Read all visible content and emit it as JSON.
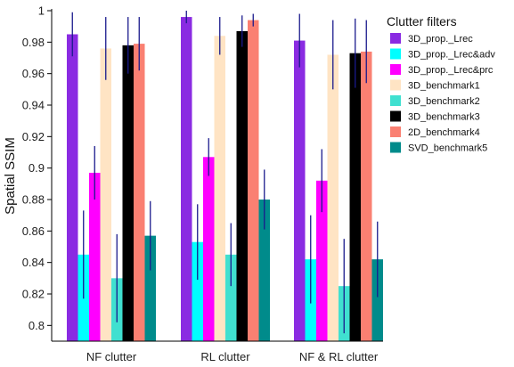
{
  "chart_data": {
    "type": "bar",
    "ylabel": "Spatial SSIM",
    "xlabel": "",
    "ylim": [
      0.79,
      1.0
    ],
    "yticks": [
      0.8,
      0.82,
      0.84,
      0.86,
      0.88,
      0.9,
      0.92,
      0.94,
      0.96,
      0.98,
      1
    ],
    "ytick_labels": [
      "0.8",
      "0.82",
      "0.84",
      "0.86",
      "0.88",
      "0.9",
      "0.92",
      "0.94",
      "0.96",
      "0.98",
      "1"
    ],
    "categories": [
      "NF clutter",
      "RL clutter",
      "NF & RL clutter"
    ],
    "legend": {
      "title": "Clutter filters",
      "position": "right"
    },
    "error_bar_color": "#1a1a8c",
    "series": [
      {
        "name": "3D_prop._Lrec",
        "color": "#8a2be2",
        "values": [
          0.985,
          0.996,
          0.981
        ],
        "errors": [
          0.014,
          0.004,
          0.017
        ]
      },
      {
        "name": "3D_prop._Lrec&adv",
        "color": "#00ffff",
        "values": [
          0.845,
          0.853,
          0.842
        ],
        "errors": [
          0.028,
          0.024,
          0.028
        ]
      },
      {
        "name": "3D_prop._Lrec&prc",
        "color": "#ff00ff",
        "values": [
          0.897,
          0.907,
          0.892
        ],
        "errors": [
          0.017,
          0.012,
          0.02
        ]
      },
      {
        "name": "3D_benchmark1",
        "color": "#ffe4c4",
        "values": [
          0.976,
          0.984,
          0.972
        ],
        "errors": [
          0.02,
          0.012,
          0.022
        ]
      },
      {
        "name": "3D_benchmark2",
        "color": "#40e0d0",
        "values": [
          0.83,
          0.845,
          0.825
        ],
        "errors": [
          0.028,
          0.02,
          0.03
        ]
      },
      {
        "name": "3D_benchmark3",
        "color": "#000000",
        "values": [
          0.978,
          0.987,
          0.973
        ],
        "errors": [
          0.018,
          0.01,
          0.022
        ]
      },
      {
        "name": "2D_benchmark4",
        "color": "#fa8072",
        "values": [
          0.979,
          0.994,
          0.974
        ],
        "errors": [
          0.017,
          0.004,
          0.02
        ]
      },
      {
        "name": "SVD_benchmark5",
        "color": "#008b8b",
        "values": [
          0.857,
          0.88,
          0.842
        ],
        "errors": [
          0.022,
          0.019,
          0.024
        ]
      }
    ]
  }
}
